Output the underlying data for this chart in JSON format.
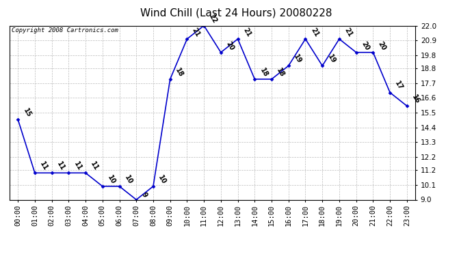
{
  "title": "Wind Chill (Last 24 Hours) 20080228",
  "copyright": "Copyright 2008 Cartronics.com",
  "hours": [
    0,
    1,
    2,
    3,
    4,
    5,
    6,
    7,
    8,
    9,
    10,
    11,
    12,
    13,
    14,
    15,
    16,
    17,
    18,
    19,
    20,
    21,
    22,
    23
  ],
  "values": [
    15,
    11,
    11,
    11,
    11,
    10,
    10,
    9,
    10,
    18,
    21,
    22,
    20,
    21,
    18,
    18,
    19,
    21,
    19,
    21,
    20,
    20,
    17,
    16
  ],
  "xlabels": [
    "00:00",
    "01:00",
    "02:00",
    "03:00",
    "04:00",
    "05:00",
    "06:00",
    "07:00",
    "08:00",
    "09:00",
    "10:00",
    "11:00",
    "12:00",
    "13:00",
    "14:00",
    "15:00",
    "16:00",
    "17:00",
    "18:00",
    "19:00",
    "20:00",
    "21:00",
    "22:00",
    "23:00"
  ],
  "ylim": [
    9.0,
    22.0
  ],
  "yticks": [
    9.0,
    10.1,
    11.2,
    12.2,
    13.3,
    14.4,
    15.5,
    16.6,
    17.7,
    18.8,
    19.8,
    20.9,
    22.0
  ],
  "line_color": "#0000cc",
  "marker_color": "#0000cc",
  "grid_color": "#bbbbbb",
  "background_color": "#ffffff",
  "title_fontsize": 11,
  "label_fontsize": 7.5,
  "copyright_fontsize": 6.5,
  "annotation_fontsize": 7,
  "annotation_color": "#000000",
  "annotation_rotation": -60
}
